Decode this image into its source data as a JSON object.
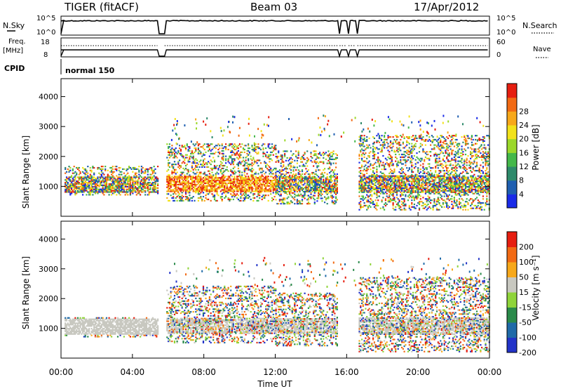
{
  "header": {
    "radar": "TIGER (fitACF)",
    "beam": "Beam 03",
    "date": "17/Apr/2012"
  },
  "strip_panels": {
    "nsky_label": "N.Sky",
    "nsky_ticks": [
      "10^5",
      "10^0"
    ],
    "nsearch_label": "N.Search",
    "nsearch_ticks": [
      "10^5",
      "10^0"
    ],
    "freq_label_1": "Freq.",
    "freq_label_2": "[MHz]",
    "freq_ticks": [
      "18",
      "8"
    ],
    "nave_label": "Nave",
    "nave_ticks": [
      "60",
      "0"
    ],
    "cpid_label": "CPID",
    "cpid_value": "normal 150"
  },
  "colors": {
    "frame": "#000000",
    "grid": "#ffffff"
  },
  "chart_data": [
    {
      "type": "heatmap",
      "title": "Power",
      "ylabel": "Slant Range [km]",
      "xlabel": "",
      "ylim": [
        0,
        4600
      ],
      "yticks": [
        "1000",
        "2000",
        "3000",
        "4000"
      ],
      "colorbar": {
        "label": "Power [dB]",
        "ticks": [
          "4",
          "8",
          "12",
          "16",
          "20",
          "24",
          "28"
        ],
        "colors": [
          "#1a2be8",
          "#1f5fb0",
          "#2e8a6b",
          "#44b84a",
          "#9bd82a",
          "#f2e21a",
          "#f7a81a",
          "#f26a14",
          "#e61e10"
        ]
      },
      "band_summary": [
        {
          "t0": 0.2,
          "t1": 5.4,
          "r0": 700,
          "r1": 1650,
          "level": "mid-high"
        },
        {
          "t0": 5.9,
          "t1": 12.0,
          "r0": 500,
          "r1": 2400,
          "level": "high"
        },
        {
          "t0": 12.0,
          "t1": 15.5,
          "r0": 400,
          "r1": 2200,
          "level": "mixed"
        },
        {
          "t0": 16.6,
          "t1": 24.0,
          "r0": 200,
          "r1": 2700,
          "level": "mixed"
        }
      ]
    },
    {
      "type": "heatmap",
      "title": "Velocity",
      "ylabel": "Slant Range [km]",
      "xlabel": "Time UT",
      "ylim": [
        0,
        4600
      ],
      "yticks": [
        "1000",
        "2000",
        "3000",
        "4000"
      ],
      "xticks": [
        "00:00",
        "04:00",
        "08:00",
        "12:00",
        "16:00",
        "20:00",
        "00:00"
      ],
      "colorbar": {
        "label": "Velocity [m s⁻¹]",
        "ticks": [
          "200",
          "100",
          "50",
          "15",
          "-15",
          "-50",
          "-100",
          "-200"
        ],
        "colors": [
          "#2233c8",
          "#1f6aa8",
          "#2a8a4a",
          "#8fd43a",
          "#c8c8c0",
          "#f7a81a",
          "#f26a14",
          "#e61e10"
        ]
      },
      "band_summary": [
        {
          "t0": 0.2,
          "t1": 5.4,
          "r0": 700,
          "r1": 1350,
          "level": "ground-scatter"
        },
        {
          "t0": 5.9,
          "t1": 12.0,
          "r0": 500,
          "r1": 2400,
          "level": "mixed"
        },
        {
          "t0": 12.0,
          "t1": 15.5,
          "r0": 400,
          "r1": 2200,
          "level": "mixed"
        },
        {
          "t0": 16.6,
          "t1": 24.0,
          "r0": 200,
          "r1": 2700,
          "level": "mixed"
        }
      ]
    }
  ]
}
